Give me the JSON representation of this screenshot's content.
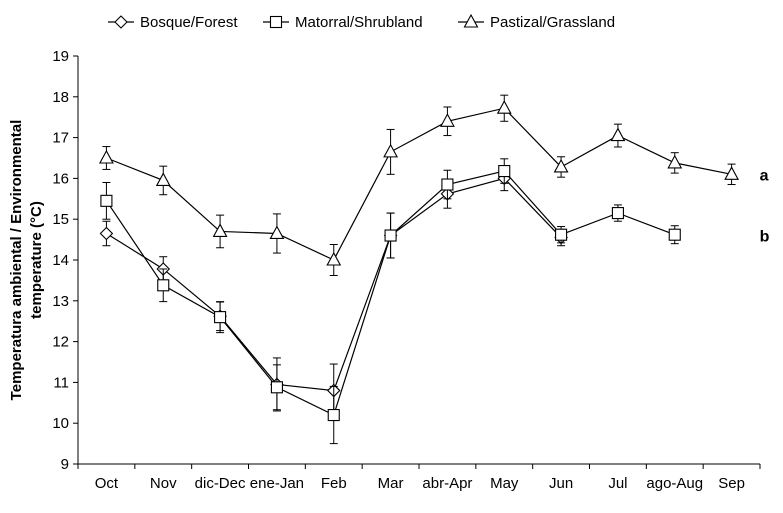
{
  "chart_data": {
    "type": "line",
    "title": "",
    "xlabel": "",
    "ylabel_lines": [
      "Temperatura ambiental / Environmental",
      "temperature (°C)"
    ],
    "ylim": [
      9,
      19
    ],
    "yticks": [
      9,
      10,
      11,
      12,
      13,
      14,
      15,
      16,
      17,
      18,
      19
    ],
    "grid": false,
    "legend_position": "top",
    "categories": [
      "Oct",
      "Nov",
      "dic-Dec",
      "ene-Jan",
      "Feb",
      "Mar",
      "abr-Apr",
      "May",
      "Jun",
      "Jul",
      "ago-Aug",
      "Sep"
    ],
    "series": [
      {
        "name": "Bosque/Forest",
        "marker": "diamond",
        "values": [
          14.65,
          13.78,
          12.62,
          10.95,
          10.8,
          14.6,
          15.62,
          16.0,
          14.55,
          null,
          null,
          null
        ],
        "err": [
          0.3,
          0.3,
          0.35,
          0.65,
          0.65,
          0.55,
          0.35,
          0.3,
          0.2,
          null,
          null,
          null
        ]
      },
      {
        "name": "Matorral/Shrubland",
        "marker": "square",
        "values": [
          15.45,
          13.38,
          12.6,
          10.88,
          10.2,
          14.6,
          15.85,
          16.18,
          14.62,
          15.15,
          14.62,
          null
        ],
        "err": [
          0.45,
          0.4,
          0.38,
          0.55,
          0.7,
          0.55,
          0.35,
          0.3,
          0.2,
          0.2,
          0.22,
          null
        ]
      },
      {
        "name": "Pastizal/Grassland",
        "marker": "triangle",
        "values": [
          16.5,
          15.95,
          14.7,
          14.65,
          14.0,
          16.65,
          17.4,
          17.72,
          16.28,
          17.05,
          16.38,
          16.1
        ],
        "err": [
          0.28,
          0.35,
          0.4,
          0.48,
          0.38,
          0.55,
          0.35,
          0.32,
          0.25,
          0.28,
          0.25,
          0.25
        ]
      }
    ],
    "annotations": [
      {
        "text": "a",
        "x": "Sep",
        "y": 16.1
      },
      {
        "text": "b",
        "x": "Sep",
        "y": 14.6
      }
    ]
  }
}
